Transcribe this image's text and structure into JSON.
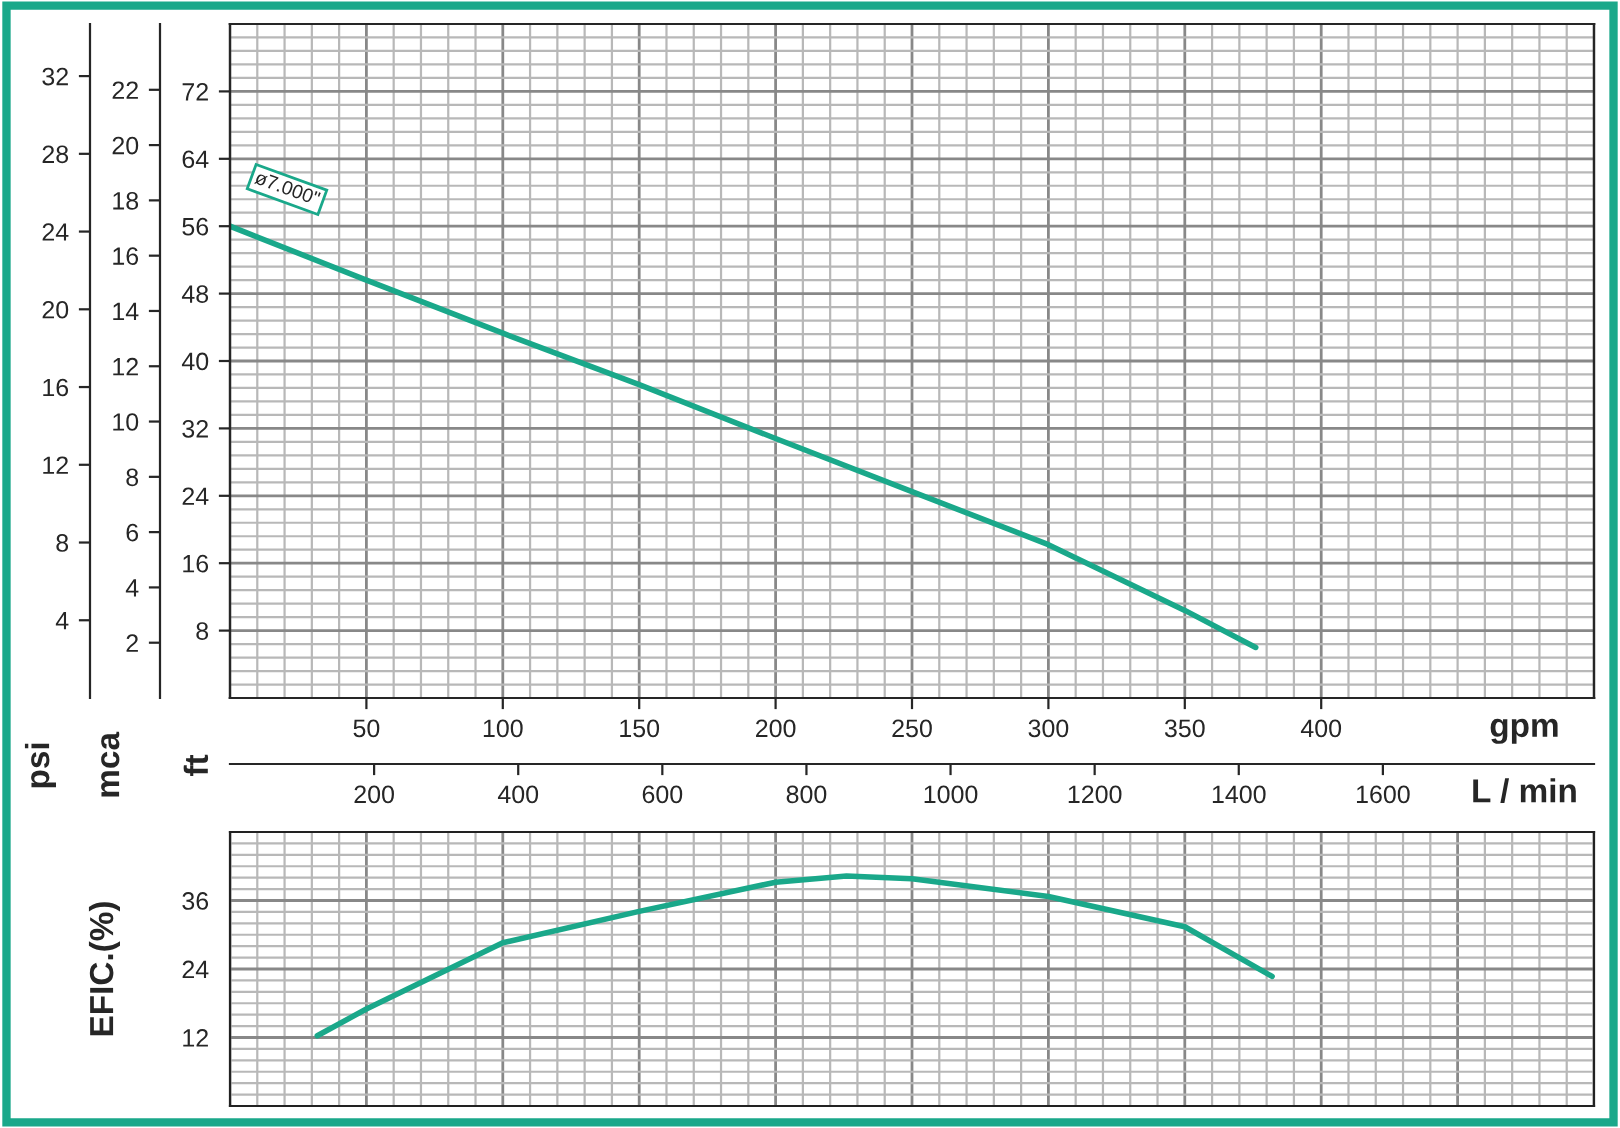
{
  "chart_data": [
    {
      "type": "line",
      "xlabel": "gpm",
      "x2label": "L / min",
      "ylabel": "ft",
      "y2label": "mca",
      "y3label": "psi",
      "xlim": [
        0,
        500
      ],
      "xticks": [
        50,
        100,
        150,
        200,
        250,
        300,
        350,
        400
      ],
      "x2lim": [
        0,
        1893
      ],
      "x2ticks": [
        200,
        400,
        600,
        800,
        1000,
        1200,
        1400,
        1600
      ],
      "ylim": [
        0,
        80
      ],
      "yticks": [
        8,
        16,
        24,
        32,
        40,
        48,
        56,
        64,
        72
      ],
      "y2lim": [
        0,
        24.38
      ],
      "y2ticks": [
        2,
        4,
        6,
        8,
        10,
        12,
        14,
        16,
        18,
        20,
        22
      ],
      "y3lim": [
        0,
        34.68
      ],
      "y3ticks": [
        4,
        8,
        12,
        16,
        20,
        24,
        28,
        32
      ],
      "grid": true,
      "color": "#1aa88a",
      "x": [
        0,
        50,
        100,
        150,
        200,
        250,
        300,
        350,
        376
      ],
      "values": [
        56,
        49.6,
        43.3,
        37.2,
        30.8,
        24.5,
        18.2,
        10.4,
        6.0
      ],
      "annotations": [
        {
          "text": "ø7.000\"",
          "x": 0,
          "y": 56
        }
      ]
    },
    {
      "type": "line",
      "ylabel": "EFIC.(%)",
      "xlim": [
        0,
        500
      ],
      "ylim": [
        0,
        48
      ],
      "yticks": [
        12,
        24,
        36
      ],
      "grid": true,
      "tick_labels": "y",
      "color": "#1aa88a",
      "x": [
        32,
        50,
        100,
        150,
        200,
        226,
        250,
        300,
        350,
        382
      ],
      "values": [
        12.3,
        17,
        28.6,
        34.1,
        39.2,
        40.3,
        39.8,
        36.7,
        31.4,
        22.7
      ]
    }
  ]
}
